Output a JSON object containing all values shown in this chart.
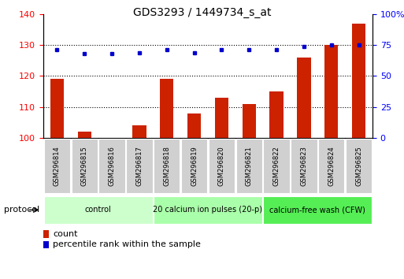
{
  "title": "GDS3293 / 1449734_s_at",
  "categories": [
    "GSM296814",
    "GSM296815",
    "GSM296816",
    "GSM296817",
    "GSM296818",
    "GSM296819",
    "GSM296820",
    "GSM296821",
    "GSM296822",
    "GSM296823",
    "GSM296824",
    "GSM296825"
  ],
  "bar_values": [
    119,
    102,
    100,
    104,
    119,
    108,
    113,
    111,
    115,
    126,
    130,
    137
  ],
  "percentile_values": [
    71,
    68,
    68,
    69,
    71,
    69,
    71,
    71,
    71,
    74,
    75,
    75
  ],
  "bar_color": "#cc2200",
  "dot_color": "#0000cc",
  "ylim_left": [
    100,
    140
  ],
  "ylim_right": [
    0,
    100
  ],
  "yticks_left": [
    100,
    110,
    120,
    130,
    140
  ],
  "yticks_right": [
    0,
    25,
    50,
    75,
    100
  ],
  "ytick_labels_right": [
    "0",
    "25",
    "50",
    "75",
    "100%"
  ],
  "gridlines": [
    110,
    120,
    130
  ],
  "group_defs": [
    {
      "start": 0,
      "end": 3,
      "color": "#ccffcc",
      "label": "control"
    },
    {
      "start": 4,
      "end": 7,
      "color": "#aaffaa",
      "label": "20 calcium ion pulses (20-p)"
    },
    {
      "start": 8,
      "end": 11,
      "color": "#55ee55",
      "label": "calcium-free wash (CFW)"
    }
  ],
  "protocol_label": "protocol",
  "legend_count_label": "count",
  "legend_pct_label": "percentile rank within the sample",
  "bg_color": "#ffffff",
  "bar_width": 0.5,
  "title_fontsize": 10,
  "axis_fontsize": 8,
  "label_fontsize": 6,
  "group_fontsize": 7,
  "legend_fontsize": 8
}
